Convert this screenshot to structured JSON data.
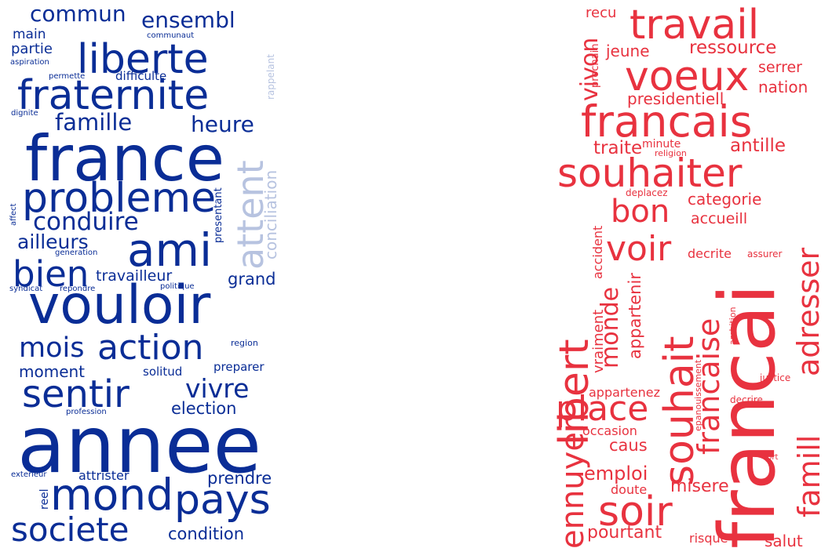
{
  "colors": {
    "blue": "#0a2d96",
    "blue_pale": "#b7c3e0",
    "red": "#e8323f",
    "red_pale": "#f2a0a6"
  },
  "clouds": [
    {
      "id": "blue",
      "words": [
        {
          "text": "commun",
          "color": "blue"
        },
        {
          "text": "ensembl",
          "color": "blue"
        },
        {
          "text": "main",
          "color": "blue"
        },
        {
          "text": "communaut",
          "color": "blue"
        },
        {
          "text": "rappelant",
          "color": "blue_pale"
        },
        {
          "text": "partie",
          "color": "blue"
        },
        {
          "text": "liberte",
          "color": "blue"
        },
        {
          "text": "aspiration",
          "color": "blue"
        },
        {
          "text": "permette",
          "color": "blue"
        },
        {
          "text": "difficulte",
          "color": "blue"
        },
        {
          "text": "fraternite",
          "color": "blue"
        },
        {
          "text": "dignite",
          "color": "blue"
        },
        {
          "text": "famille",
          "color": "blue"
        },
        {
          "text": "heure",
          "color": "blue"
        },
        {
          "text": "france",
          "color": "blue"
        },
        {
          "text": "attent",
          "color": "blue_pale"
        },
        {
          "text": "conciliation",
          "color": "blue_pale"
        },
        {
          "text": "probleme",
          "color": "blue"
        },
        {
          "text": "affect",
          "color": "blue"
        },
        {
          "text": "presentant",
          "color": "blue"
        },
        {
          "text": "conduire",
          "color": "blue"
        },
        {
          "text": "ailleurs",
          "color": "blue"
        },
        {
          "text": "ami",
          "color": "blue"
        },
        {
          "text": "generation",
          "color": "blue"
        },
        {
          "text": "bien",
          "color": "blue"
        },
        {
          "text": "travailleur",
          "color": "blue"
        },
        {
          "text": "grand",
          "color": "blue"
        },
        {
          "text": "syndicat",
          "color": "blue"
        },
        {
          "text": "repondre",
          "color": "blue"
        },
        {
          "text": "politique",
          "color": "blue"
        },
        {
          "text": "vouloir",
          "color": "blue"
        },
        {
          "text": "region",
          "color": "blue"
        },
        {
          "text": "mois",
          "color": "blue"
        },
        {
          "text": "action",
          "color": "blue"
        },
        {
          "text": "moment",
          "color": "blue"
        },
        {
          "text": "solitud",
          "color": "blue"
        },
        {
          "text": "preparer",
          "color": "blue"
        },
        {
          "text": "sentir",
          "color": "blue"
        },
        {
          "text": "vivre",
          "color": "blue"
        },
        {
          "text": "election",
          "color": "blue"
        },
        {
          "text": "profession",
          "color": "blue"
        },
        {
          "text": "annee",
          "color": "blue"
        },
        {
          "text": "exterieur",
          "color": "blue"
        },
        {
          "text": "attrister",
          "color": "blue"
        },
        {
          "text": "prendre",
          "color": "blue"
        },
        {
          "text": "reel",
          "color": "blue"
        },
        {
          "text": "mond",
          "color": "blue"
        },
        {
          "text": "pays",
          "color": "blue"
        },
        {
          "text": "societe",
          "color": "blue"
        },
        {
          "text": "condition",
          "color": "blue"
        }
      ]
    },
    {
      "id": "red",
      "words": [
        {
          "text": "recu",
          "color": "red"
        },
        {
          "text": "travail",
          "color": "red"
        },
        {
          "text": "prochain",
          "color": "red"
        },
        {
          "text": "jeune",
          "color": "red"
        },
        {
          "text": "ressource",
          "color": "red"
        },
        {
          "text": "vivon",
          "color": "red"
        },
        {
          "text": "voeux",
          "color": "red"
        },
        {
          "text": "serrer",
          "color": "red"
        },
        {
          "text": "nation",
          "color": "red"
        },
        {
          "text": "presidentiell",
          "color": "red"
        },
        {
          "text": "francais",
          "color": "red"
        },
        {
          "text": "traite",
          "color": "red"
        },
        {
          "text": "minute",
          "color": "red"
        },
        {
          "text": "religion",
          "color": "red"
        },
        {
          "text": "antille",
          "color": "red"
        },
        {
          "text": "souhaiter",
          "color": "red"
        },
        {
          "text": "deplacez",
          "color": "red"
        },
        {
          "text": "categorie",
          "color": "red"
        },
        {
          "text": "bon",
          "color": "red"
        },
        {
          "text": "accueill",
          "color": "red"
        },
        {
          "text": "francai",
          "color": "red"
        },
        {
          "text": "libert",
          "color": "red"
        },
        {
          "text": "souhait",
          "color": "red"
        },
        {
          "text": "adresser",
          "color": "red"
        },
        {
          "text": "voir",
          "color": "red"
        },
        {
          "text": "accident",
          "color": "red"
        },
        {
          "text": "decrite",
          "color": "red"
        },
        {
          "text": "assurer",
          "color": "red"
        },
        {
          "text": "monde",
          "color": "red"
        },
        {
          "text": "appartenir",
          "color": "red"
        },
        {
          "text": "francaise",
          "color": "red"
        },
        {
          "text": "ambition",
          "color": "red"
        },
        {
          "text": "vraiment",
          "color": "red"
        },
        {
          "text": "ennuyer",
          "color": "red"
        },
        {
          "text": "famill",
          "color": "red"
        },
        {
          "text": "justice",
          "color": "red"
        },
        {
          "text": "appartenez",
          "color": "red"
        },
        {
          "text": "epanouissement",
          "color": "red"
        },
        {
          "text": "place",
          "color": "red"
        },
        {
          "text": "decrire",
          "color": "red"
        },
        {
          "text": "occasion",
          "color": "red"
        },
        {
          "text": "caus",
          "color": "red"
        },
        {
          "text": "sort",
          "color": "red"
        },
        {
          "text": "emploi",
          "color": "red"
        },
        {
          "text": "doute",
          "color": "red"
        },
        {
          "text": "misere",
          "color": "red"
        },
        {
          "text": "soir",
          "color": "red"
        },
        {
          "text": "pourtant",
          "color": "red"
        },
        {
          "text": "risque",
          "color": "red"
        },
        {
          "text": "salut",
          "color": "red"
        }
      ]
    }
  ]
}
